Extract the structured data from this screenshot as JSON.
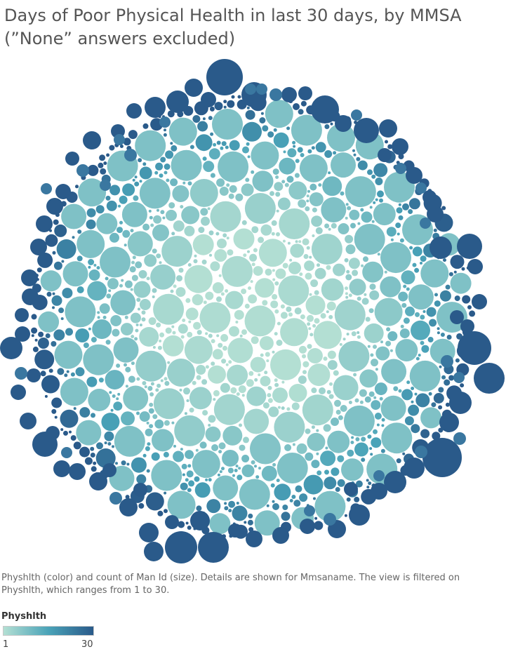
{
  "title": {
    "line1": "Days of Poor Physical Health in last 30 days, by MMSA",
    "line2": "(”None” answers excluded)"
  },
  "caption": "Physhlth (color) and count of Man Id (size).  Details are shown for Mmsaname. The view is filtered on Physhlth, which ranges from 1 to 30.",
  "legend": {
    "title": "Physhlth",
    "min_label": "1",
    "max_label": "30",
    "color_low": "#b3dfd3",
    "color_mid": "#4aa3b8",
    "color_high": "#2a5a8a"
  },
  "chart_data": {
    "type": "packed-bubble",
    "color_field": "Physhlth",
    "size_field": "count of Man Id",
    "detail_field": "Mmsaname",
    "filter_range": [
      1,
      30
    ],
    "color_range": [
      1,
      30
    ]
  }
}
